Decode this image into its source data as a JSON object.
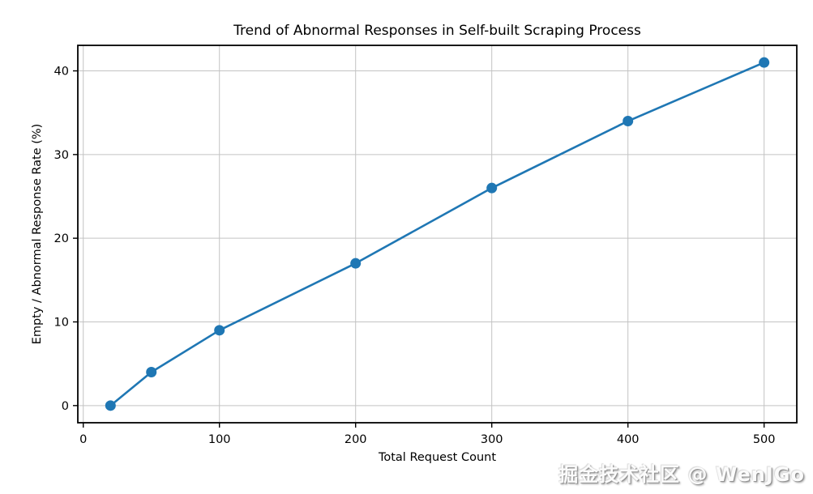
{
  "chart_data": {
    "type": "line",
    "title": "Trend of Abnormal Responses in Self-built Scraping Process",
    "xlabel": "Total Request Count",
    "ylabel": "Empty / Abnormal Response Rate (%)",
    "x": [
      20,
      50,
      100,
      200,
      300,
      400,
      500
    ],
    "y": [
      0,
      4,
      9,
      17,
      26,
      34,
      41
    ],
    "x_ticks": [
      0,
      100,
      200,
      300,
      400,
      500
    ],
    "y_ticks": [
      0,
      10,
      20,
      30,
      40
    ],
    "xlim": [
      -4,
      524
    ],
    "ylim": [
      -2.05,
      43.05
    ],
    "grid": true,
    "legend": "none",
    "series_color": "#1f77b4",
    "grid_color": "#c3c3c3",
    "spine_color": "#000000",
    "watermark": "掘金技术社区 @ WenJGo"
  }
}
